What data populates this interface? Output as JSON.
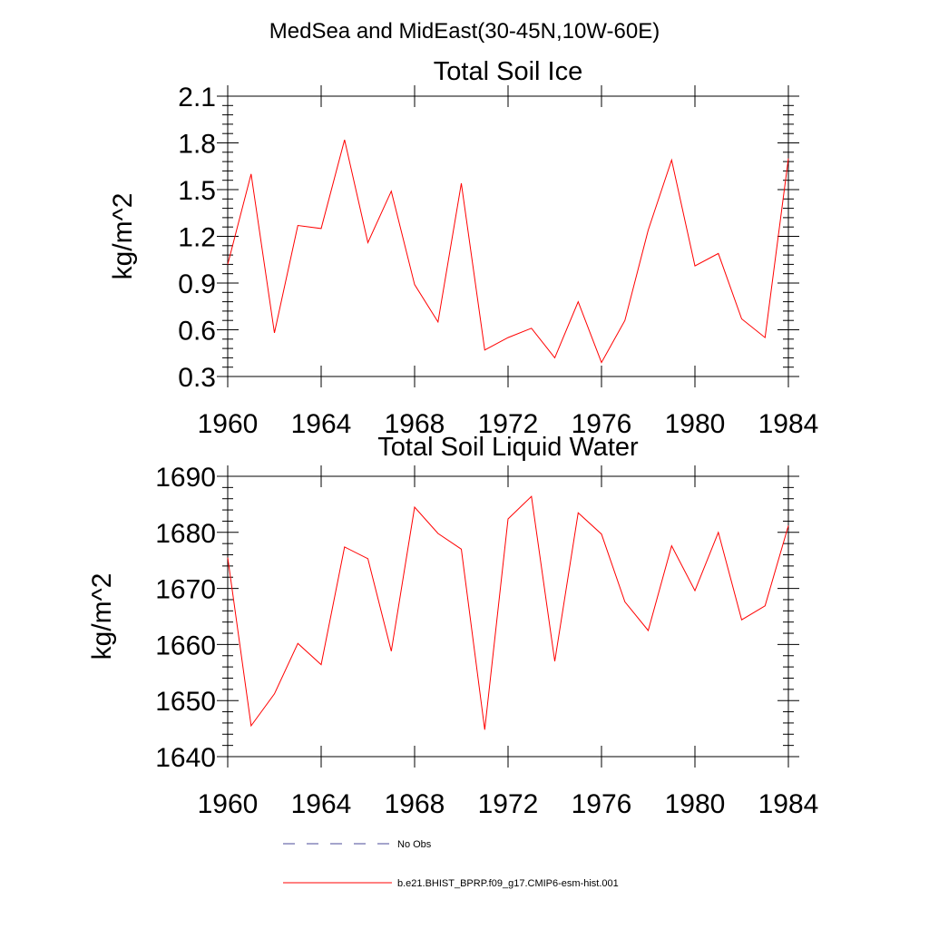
{
  "figure": {
    "title": "MedSea and MidEast(30-45N,10W-60E)"
  },
  "chart_data": [
    {
      "type": "line",
      "title": "Total Soil Ice",
      "ylabel": "kg/m^2",
      "xlabel": "",
      "xlim": [
        1960,
        1984
      ],
      "ylim": [
        0.3,
        2.1
      ],
      "x_ticks": [
        1960,
        1964,
        1968,
        1972,
        1976,
        1980,
        1984
      ],
      "x_tick_labels": [
        "1960",
        "1964",
        "1968",
        "1972",
        "1976",
        "1980",
        "1984"
      ],
      "y_ticks": [
        0.3,
        0.6,
        0.9,
        1.2,
        1.5,
        1.8,
        2.1
      ],
      "y_tick_labels": [
        "0.3",
        "0.6",
        "0.9",
        "1.2",
        "1.5",
        "1.8",
        "2.1"
      ],
      "grid": false,
      "x": [
        1960,
        1961,
        1962,
        1963,
        1964,
        1965,
        1966,
        1967,
        1968,
        1969,
        1970,
        1971,
        1972,
        1973,
        1974,
        1975,
        1976,
        1977,
        1978,
        1979,
        1980,
        1981,
        1982,
        1983,
        1984
      ],
      "series": [
        {
          "color": "#ff0000",
          "values": [
            1.02,
            1.6,
            0.58,
            1.27,
            1.25,
            1.82,
            1.16,
            1.49,
            0.89,
            0.65,
            1.54,
            0.47,
            0.55,
            0.61,
            0.42,
            0.78,
            0.39,
            0.66,
            1.24,
            1.69,
            1.01,
            1.09,
            0.67,
            0.55,
            1.7
          ]
        }
      ]
    },
    {
      "type": "line",
      "title": "Total Soil Liquid Water",
      "ylabel": "kg/m^2",
      "xlabel": "",
      "xlim": [
        1960,
        1984
      ],
      "ylim": [
        1640,
        1690
      ],
      "x_ticks": [
        1960,
        1964,
        1968,
        1972,
        1976,
        1980,
        1984
      ],
      "x_tick_labels": [
        "1960",
        "1964",
        "1968",
        "1972",
        "1976",
        "1980",
        "1984"
      ],
      "y_ticks": [
        1640,
        1650,
        1660,
        1670,
        1680,
        1690
      ],
      "y_tick_labels": [
        "1640",
        "1650",
        "1660",
        "1670",
        "1680",
        "1690"
      ],
      "grid": false,
      "x": [
        1960,
        1961,
        1962,
        1963,
        1964,
        1965,
        1966,
        1967,
        1968,
        1969,
        1970,
        1971,
        1972,
        1973,
        1974,
        1975,
        1976,
        1977,
        1978,
        1979,
        1980,
        1981,
        1982,
        1983,
        1984
      ],
      "series": [
        {
          "color": "#ff0000",
          "values": [
            1675.5,
            1645.5,
            1651.2,
            1660.2,
            1656.4,
            1677.4,
            1675.3,
            1658.8,
            1684.5,
            1679.8,
            1677.0,
            1644.8,
            1682.4,
            1686.4,
            1657.0,
            1683.5,
            1679.7,
            1667.6,
            1662.5,
            1677.6,
            1669.6,
            1680.0,
            1664.4,
            1666.9,
            1681.2
          ]
        }
      ]
    }
  ],
  "legend": {
    "placement": "bottom",
    "items": [
      {
        "label": "No Obs",
        "color": "#4a4a9a",
        "style": "dashed"
      },
      {
        "label": "b.e21.BHIST_BPRP.f09_g17.CMIP6-esm-hist.001",
        "color": "#ff0000",
        "style": "solid"
      }
    ]
  }
}
